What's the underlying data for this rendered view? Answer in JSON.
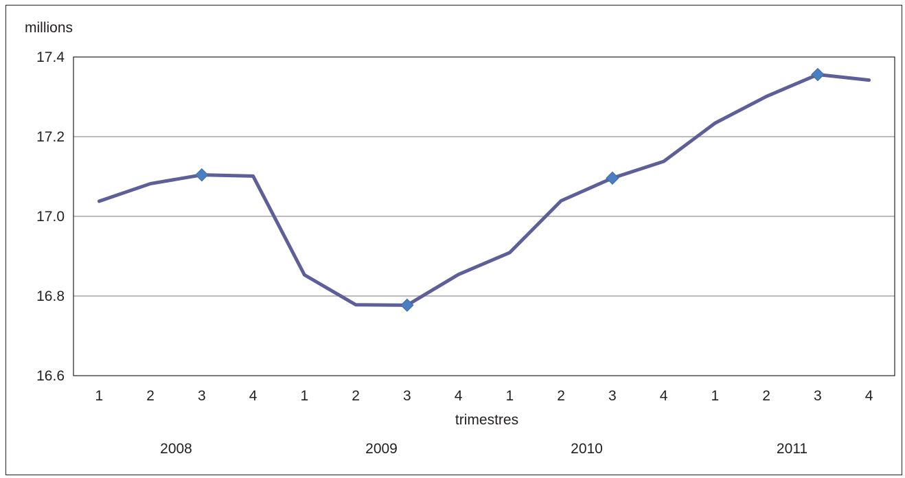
{
  "chart_data": {
    "type": "line",
    "ylabel": "millions",
    "xlabel": "trimestres",
    "ylim": [
      16.6,
      17.4
    ],
    "yticks": [
      "17.4",
      "17.2",
      "17.0",
      "16.8",
      "16.6"
    ],
    "ytick_values": [
      17.4,
      17.2,
      17.0,
      16.8,
      16.6
    ],
    "categories": [
      "1",
      "2",
      "3",
      "4",
      "1",
      "2",
      "3",
      "4",
      "1",
      "2",
      "3",
      "4",
      "1",
      "2",
      "3",
      "4"
    ],
    "years": [
      "2008",
      "2009",
      "2010",
      "2011"
    ],
    "series": [
      {
        "values": [
          17.038,
          17.082,
          17.104,
          17.101,
          16.853,
          16.778,
          16.777,
          16.854,
          16.909,
          17.039,
          17.096,
          17.138,
          17.234,
          17.301,
          17.356,
          17.342
        ],
        "marker_indices": [
          2,
          6,
          10,
          14
        ]
      }
    ],
    "grid": true,
    "colors": {
      "line": "#5e5e98",
      "marker": "#4a7fc1",
      "grid": "#a6a6a6",
      "axis": "#231f20"
    }
  }
}
